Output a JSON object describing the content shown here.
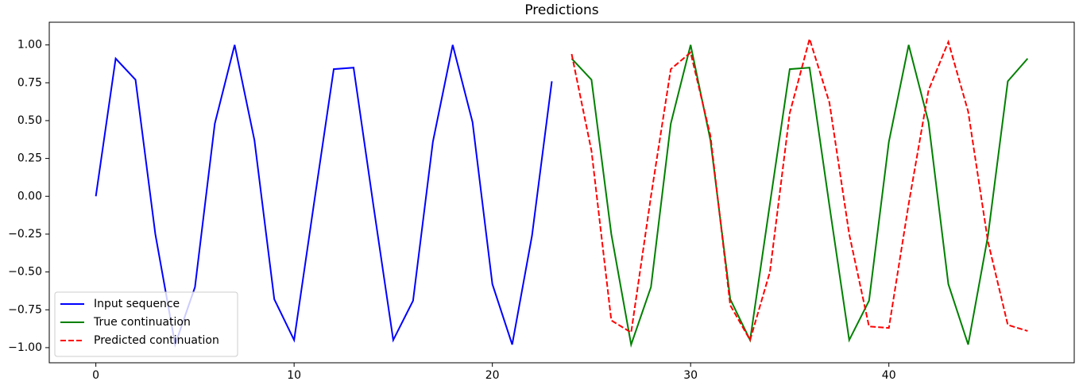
{
  "chart_data": {
    "type": "line",
    "title": "Predictions",
    "xlim": [
      -2.35,
      49.35
    ],
    "xticks": [
      0,
      10,
      20,
      30,
      40
    ],
    "ylim": [
      -1.1,
      1.15
    ],
    "yticks": [
      {
        "value": -1,
        "label": "−1.00"
      },
      {
        "value": -0.75,
        "label": "−0.75"
      },
      {
        "value": -0.5,
        "label": "−0.50"
      },
      {
        "value": -0.25,
        "label": "−0.25"
      },
      {
        "value": 0,
        "label": "0.00"
      },
      {
        "value": 0.25,
        "label": "0.25"
      },
      {
        "value": 0.5,
        "label": "0.50"
      },
      {
        "value": 0.75,
        "label": "0.75"
      },
      {
        "value": 1,
        "label": "1.00"
      }
    ],
    "legend": "lower left",
    "series": [
      {
        "name": "Input sequence",
        "color": "#0000ff",
        "linestyle": "solid",
        "x": [
          0,
          1,
          2,
          3,
          4,
          5,
          6,
          7,
          8,
          9,
          10,
          11,
          12,
          13,
          14,
          15,
          16,
          17,
          18,
          19,
          20,
          21,
          22,
          23
        ],
        "values": [
          0,
          0.91,
          0.77,
          -0.25,
          -0.98,
          -0.6,
          0.48,
          1.0,
          0.37,
          -0.68,
          -0.95,
          -0.05,
          0.84,
          0.85,
          -0.06,
          -0.95,
          -0.69,
          0.36,
          1.0,
          0.49,
          -0.58,
          -0.98,
          -0.26,
          0.76
        ]
      },
      {
        "name": "True continuation",
        "color": "#008000",
        "linestyle": "solid",
        "x": [
          24,
          25,
          26,
          27,
          28,
          29,
          30,
          31,
          32,
          33,
          34,
          35,
          36,
          37,
          38,
          39,
          40,
          41,
          42,
          43,
          44,
          45,
          46,
          47
        ],
        "values": [
          0.91,
          0.77,
          -0.25,
          -0.98,
          -0.6,
          0.48,
          1.0,
          0.37,
          -0.68,
          -0.95,
          -0.05,
          0.84,
          0.85,
          -0.06,
          -0.95,
          -0.69,
          0.36,
          1.0,
          0.49,
          -0.58,
          -0.98,
          -0.26,
          0.76,
          0.91
        ]
      },
      {
        "name": "Predicted continuation",
        "color": "#ff0000",
        "linestyle": "dashed",
        "x": [
          24,
          25,
          26,
          27,
          28,
          29,
          30,
          31,
          32,
          33,
          34,
          35,
          36,
          37,
          38,
          39,
          40,
          41,
          42,
          43,
          44,
          45,
          46,
          47
        ],
        "values": [
          0.94,
          0.3,
          -0.82,
          -0.9,
          0.0,
          0.84,
          0.95,
          0.4,
          -0.72,
          -0.95,
          -0.5,
          0.55,
          1.04,
          0.62,
          -0.25,
          -0.86,
          -0.87,
          -0.05,
          0.7,
          1.02,
          0.56,
          -0.3,
          -0.85,
          -0.89
        ]
      }
    ]
  }
}
